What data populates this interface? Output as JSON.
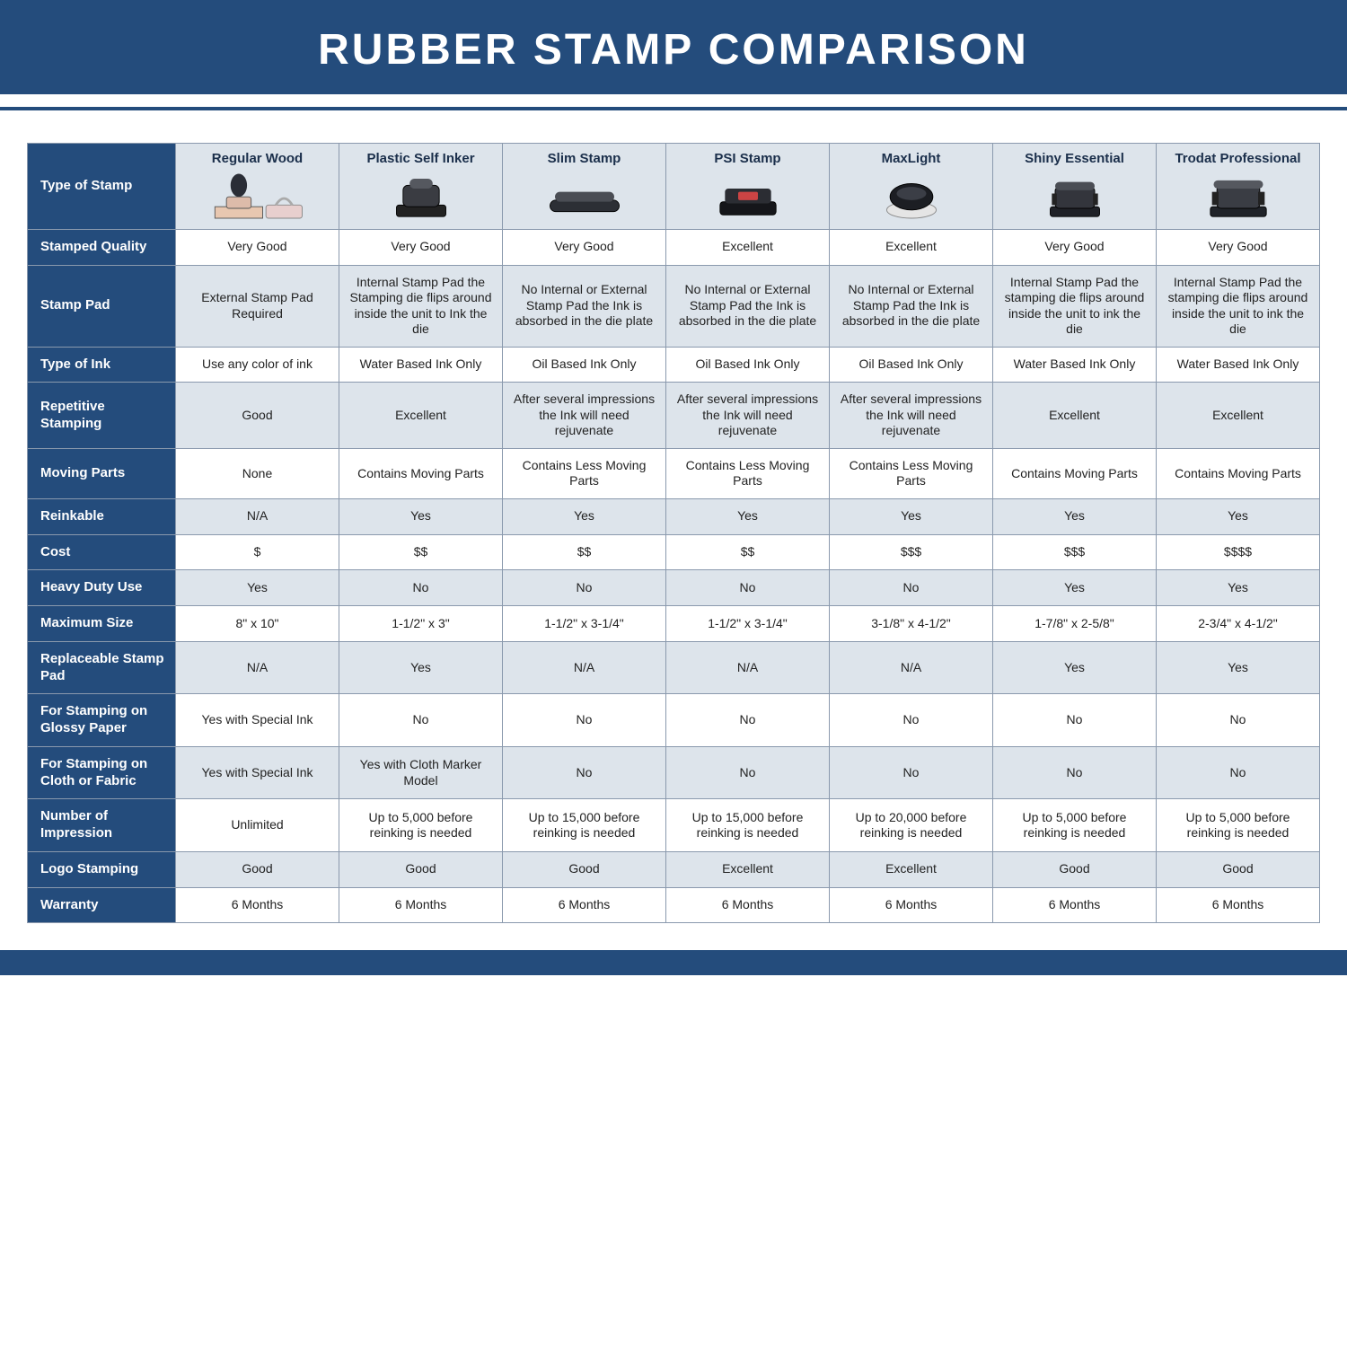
{
  "title": "RUBBER STAMP COMPARISON",
  "colors": {
    "primary": "#244c7c",
    "altRow": "#dde4eb",
    "border": "#8a99ad",
    "white": "#ffffff"
  },
  "columns": [
    {
      "id": "regular-wood",
      "label": "Regular Wood"
    },
    {
      "id": "plastic-self-inker",
      "label": "Plastic Self Inker"
    },
    {
      "id": "slim-stamp",
      "label": "Slim Stamp"
    },
    {
      "id": "psi-stamp",
      "label": "PSI Stamp"
    },
    {
      "id": "maxlight",
      "label": "MaxLight"
    },
    {
      "id": "shiny-essential",
      "label": "Shiny Essential"
    },
    {
      "id": "trodat-professional",
      "label": "Trodat Professional"
    }
  ],
  "rows": [
    {
      "id": "type-of-stamp",
      "label": "Type of Stamp",
      "hasImages": true,
      "cells": [
        "",
        "",
        "",
        "",
        "",
        "",
        ""
      ]
    },
    {
      "id": "stamped-quality",
      "label": "Stamped Quality",
      "cells": [
        "Very Good",
        "Very Good",
        "Very Good",
        "Excellent",
        "Excellent",
        "Very Good",
        "Very Good"
      ]
    },
    {
      "id": "stamp-pad",
      "label": "Stamp Pad",
      "cells": [
        "External Stamp Pad Required",
        "Internal Stamp Pad the Stamping die flips around inside the unit to Ink the die",
        "No Internal or External Stamp Pad the Ink is absorbed in the die plate",
        "No Internal or External Stamp Pad the Ink is absorbed in the die plate",
        "No Internal or External Stamp Pad the Ink is absorbed in the die plate",
        "Internal Stamp Pad the stamping die flips around inside the unit to ink the die",
        "Internal Stamp Pad the stamping die flips around inside the unit to ink the die"
      ]
    },
    {
      "id": "type-of-ink",
      "label": "Type of Ink",
      "cells": [
        "Use any color of ink",
        "Water Based Ink Only",
        "Oil Based Ink Only",
        "Oil Based Ink Only",
        "Oil Based Ink Only",
        "Water Based Ink Only",
        "Water Based Ink Only"
      ]
    },
    {
      "id": "repetitive-stamping",
      "label": "Repetitive Stamping",
      "cells": [
        "Good",
        "Excellent",
        "After several impressions the Ink will need rejuvenate",
        "After several impressions the Ink will need rejuvenate",
        "After several impressions the Ink will need rejuvenate",
        "Excellent",
        "Excellent"
      ]
    },
    {
      "id": "moving-parts",
      "label": "Moving Parts",
      "cells": [
        "None",
        "Contains Moving Parts",
        "Contains Less Moving Parts",
        "Contains Less Moving Parts",
        "Contains Less Moving Parts",
        "Contains Moving Parts",
        "Contains Moving Parts"
      ]
    },
    {
      "id": "reinkable",
      "label": "Reinkable",
      "cells": [
        "N/A",
        "Yes",
        "Yes",
        "Yes",
        "Yes",
        "Yes",
        "Yes"
      ]
    },
    {
      "id": "cost",
      "label": "Cost",
      "cells": [
        "$",
        "$$",
        "$$",
        "$$",
        "$$$",
        "$$$",
        "$$$$"
      ]
    },
    {
      "id": "heavy-duty",
      "label": "Heavy Duty Use",
      "cells": [
        "Yes",
        "No",
        "No",
        "No",
        "No",
        "Yes",
        "Yes"
      ]
    },
    {
      "id": "maximum-size",
      "label": "Maximum Size",
      "cells": [
        "8\" x 10\"",
        "1-1/2\" x 3\"",
        "1-1/2\" x 3-1/4\"",
        "1-1/2\" x 3-1/4\"",
        "3-1/8\" x 4-1/2\"",
        "1-7/8\" x 2-5/8\"",
        "2-3/4\" x 4-1/2\""
      ]
    },
    {
      "id": "replaceable-pad",
      "label": "Replaceable Stamp Pad",
      "cells": [
        "N/A",
        "Yes",
        "N/A",
        "N/A",
        "N/A",
        "Yes",
        "Yes"
      ]
    },
    {
      "id": "glossy-paper",
      "label": "For Stamping on Glossy Paper",
      "cells": [
        "Yes with Special Ink",
        "No",
        "No",
        "No",
        "No",
        "No",
        "No"
      ]
    },
    {
      "id": "cloth-fabric",
      "label": "For Stamping on Cloth or Fabric",
      "cells": [
        "Yes with Special Ink",
        "Yes with Cloth Marker Model",
        "No",
        "No",
        "No",
        "No",
        "No"
      ]
    },
    {
      "id": "num-impression",
      "label": "Number of Impression",
      "cells": [
        "Unlimited",
        "Up to 5,000 before reinking is needed",
        "Up to 15,000 before reinking is needed",
        "Up to 15,000 before reinking is needed",
        "Up to 20,000 before reinking is needed",
        "Up to 5,000 before reinking is needed",
        "Up to 5,000 before reinking is needed"
      ]
    },
    {
      "id": "logo-stamping",
      "label": "Logo Stamping",
      "cells": [
        "Good",
        "Good",
        "Good",
        "Excellent",
        "Excellent",
        "Good",
        "Good"
      ]
    },
    {
      "id": "warranty",
      "label": "Warranty",
      "cells": [
        "6 Months",
        "6 Months",
        "6 Months",
        "6 Months",
        "6 Months",
        "6 Months",
        "6 Months"
      ]
    }
  ]
}
